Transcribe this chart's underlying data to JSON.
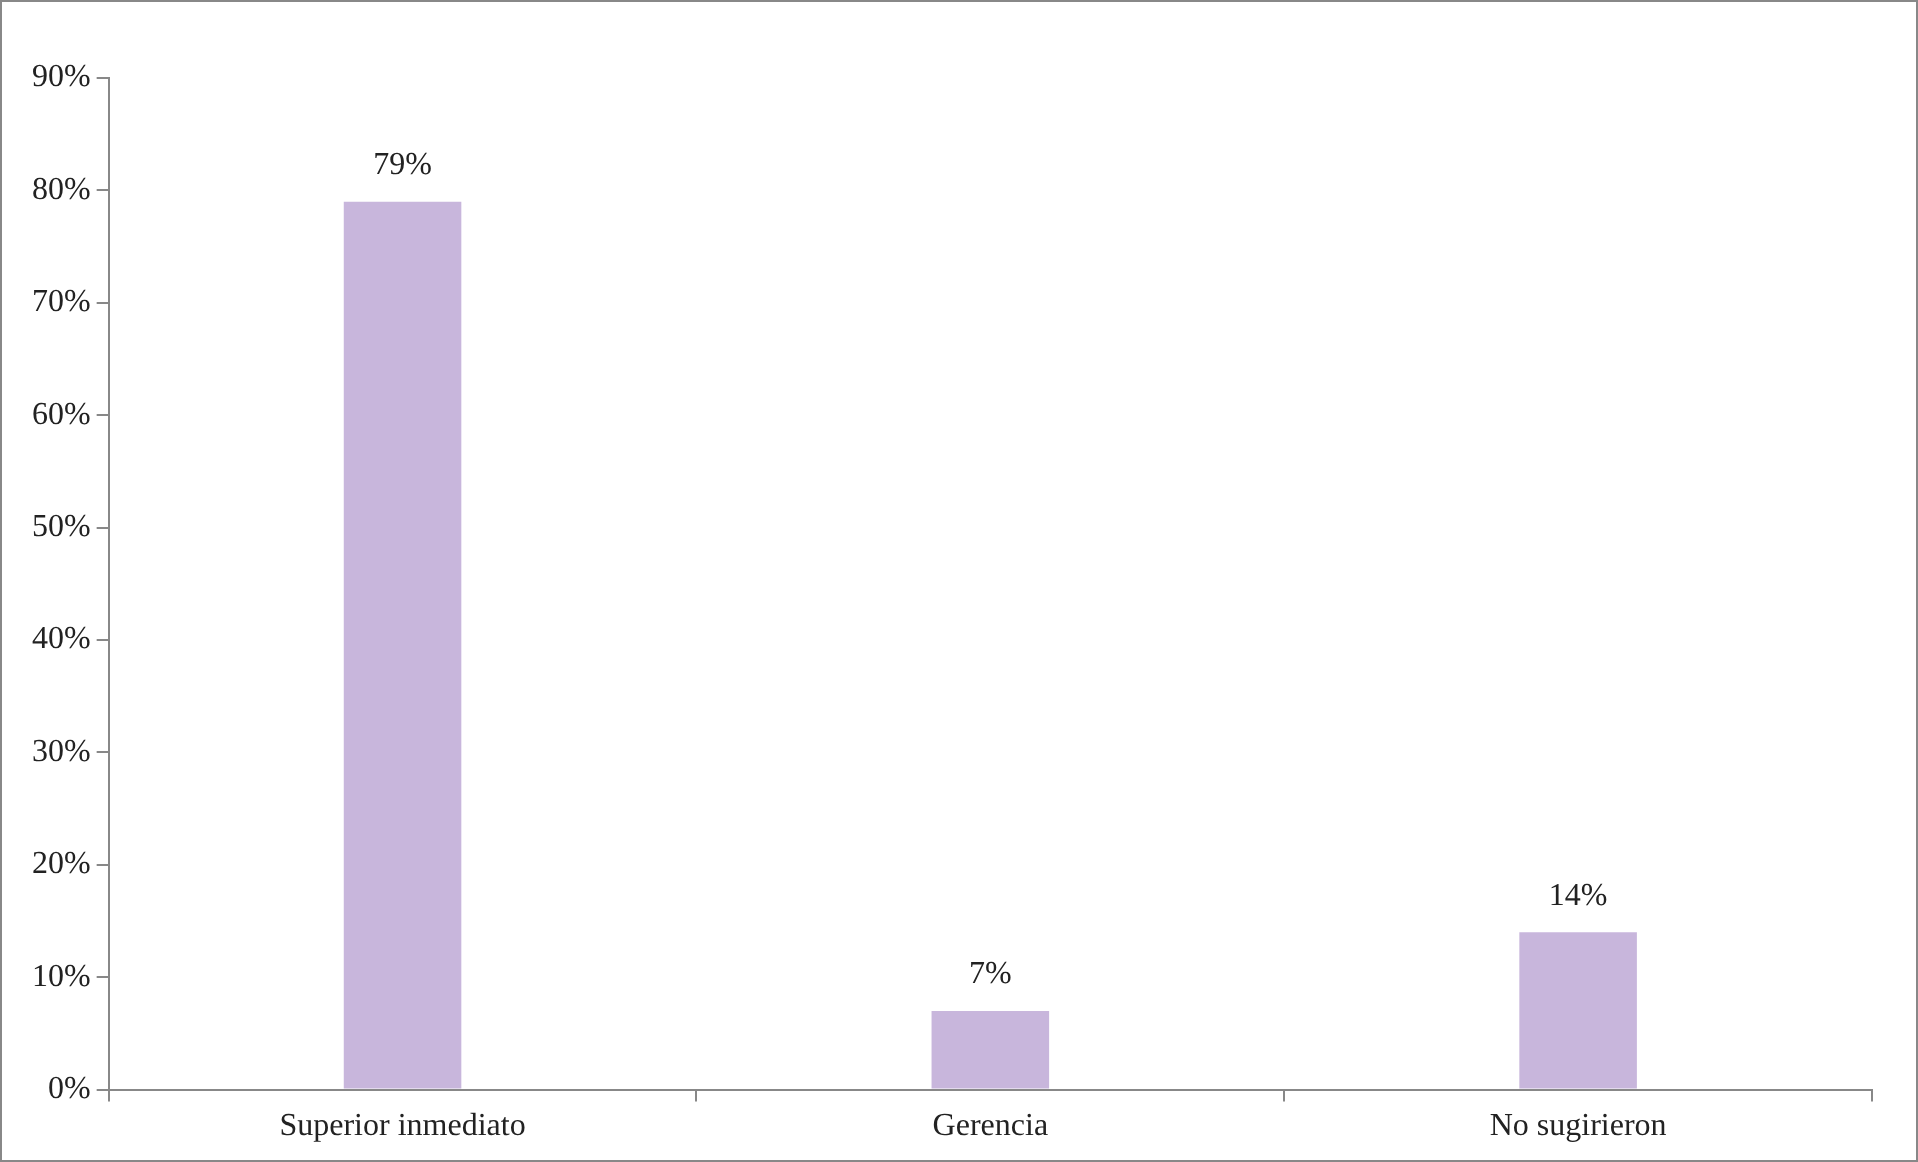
{
  "chart_data": {
    "type": "bar",
    "categories": [
      "Superior inmediato",
      "Gerencia",
      "No sugirieron"
    ],
    "values": [
      79,
      7,
      14
    ],
    "color": "#c8b6dc",
    "value_labels": [
      "79%",
      "7%",
      "14%"
    ],
    "ylim": [
      0,
      90
    ],
    "yticks": [
      {
        "value": 0,
        "label": "0%"
      },
      {
        "value": 10,
        "label": "10%"
      },
      {
        "value": 20,
        "label": "20%"
      },
      {
        "value": 30,
        "label": "30%"
      },
      {
        "value": 40,
        "label": "40%"
      },
      {
        "value": 50,
        "label": "50%"
      },
      {
        "value": 60,
        "label": "60%"
      },
      {
        "value": 70,
        "label": "70%"
      },
      {
        "value": 80,
        "label": "80%"
      },
      {
        "value": 90,
        "label": "90%"
      }
    ],
    "grid": false,
    "legend": false
  }
}
